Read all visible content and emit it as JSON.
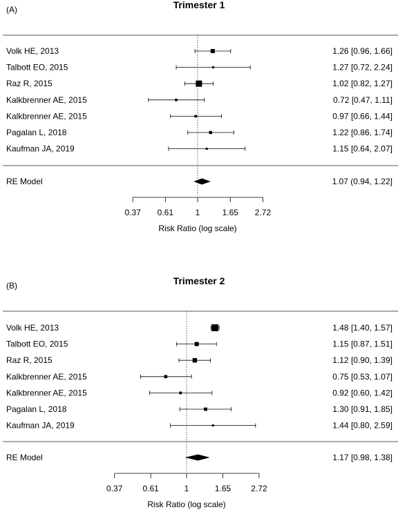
{
  "chart_data": [
    {
      "type": "forest",
      "panel_label": "(A)",
      "title": "Trimester 1",
      "xlabel": "Risk Ratio (log scale)",
      "x_scale": "log",
      "x_ticks": [
        0.37,
        0.61,
        1,
        1.65,
        2.72
      ],
      "x_tick_labels": [
        "0.37",
        "0.61",
        "1",
        "1.65",
        "2.72"
      ],
      "reference_line": 1,
      "studies": [
        {
          "label": "Volk HE, 2013",
          "rr": 1.26,
          "lower": 0.96,
          "upper": 1.66,
          "weight": 3,
          "ci_text": "1.26 [0.96, 1.66]"
        },
        {
          "label": "Talbott EO, 2015",
          "rr": 1.27,
          "lower": 0.72,
          "upper": 2.24,
          "weight": 1.5,
          "ci_text": "1.27 [0.72, 2.24]"
        },
        {
          "label": "Raz R, 2015",
          "rr": 1.02,
          "lower": 0.82,
          "upper": 1.27,
          "weight": 4.5,
          "ci_text": "1.02 [0.82, 1.27]"
        },
        {
          "label": "Kalkbrenner AE, 2015",
          "rr": 0.72,
          "lower": 0.47,
          "upper": 1.11,
          "weight": 1.8,
          "ci_text": "0.72 [0.47, 1.11]"
        },
        {
          "label": "Kalkbrenner AE, 2015",
          "rr": 0.97,
          "lower": 0.66,
          "upper": 1.44,
          "weight": 1.8,
          "ci_text": "0.97 [0.66, 1.44]"
        },
        {
          "label": "Pagalan L, 2018",
          "rr": 1.22,
          "lower": 0.86,
          "upper": 1.74,
          "weight": 2.2,
          "ci_text": "1.22 [0.86, 1.74]"
        },
        {
          "label": "Kaufman JA, 2019",
          "rr": 1.15,
          "lower": 0.64,
          "upper": 2.07,
          "weight": 1.5,
          "ci_text": "1.15 [0.64, 2.07]"
        }
      ],
      "summary": {
        "label": "RE Model",
        "rr": 1.07,
        "lower": 0.94,
        "upper": 1.22,
        "ci_text": "1.07 (0.94, 1.22]"
      }
    },
    {
      "type": "forest",
      "panel_label": "(B)",
      "title": "Trimester 2",
      "xlabel": "Risk Ratio (log scale)",
      "x_scale": "log",
      "x_ticks": [
        0.37,
        0.61,
        1,
        1.65,
        2.72
      ],
      "x_tick_labels": [
        "0.37",
        "0.61",
        "1",
        "1.65",
        "2.72"
      ],
      "reference_line": 1,
      "studies": [
        {
          "label": "Volk HE, 2013",
          "rr": 1.48,
          "lower": 1.4,
          "upper": 1.57,
          "weight": 5,
          "ci_text": "1.48 [1.40, 1.57]"
        },
        {
          "label": "Talbott EO, 2015",
          "rr": 1.15,
          "lower": 0.87,
          "upper": 1.51,
          "weight": 3,
          "ci_text": "1.15 [0.87, 1.51]"
        },
        {
          "label": "Raz R, 2015",
          "rr": 1.12,
          "lower": 0.9,
          "upper": 1.39,
          "weight": 3.2,
          "ci_text": "1.12 [0.90, 1.39]"
        },
        {
          "label": "Kalkbrenner AE, 2015",
          "rr": 0.75,
          "lower": 0.53,
          "upper": 1.07,
          "weight": 2.3,
          "ci_text": "0.75 [0.53, 1.07]"
        },
        {
          "label": "Kalkbrenner AE, 2015",
          "rr": 0.92,
          "lower": 0.6,
          "upper": 1.42,
          "weight": 1.9,
          "ci_text": "0.92 [0.60, 1.42]"
        },
        {
          "label": "Pagalan L, 2018",
          "rr": 1.3,
          "lower": 0.91,
          "upper": 1.85,
          "weight": 2.4,
          "ci_text": "1.30 [0.91, 1.85]"
        },
        {
          "label": "Kaufman JA, 2019",
          "rr": 1.44,
          "lower": 0.8,
          "upper": 2.59,
          "weight": 1.5,
          "ci_text": "1.44 [0.80, 2.59]"
        }
      ],
      "summary": {
        "label": "RE Model",
        "rr": 1.17,
        "lower": 0.98,
        "upper": 1.38,
        "ci_text": "1.17 [0.98, 1.38]"
      }
    }
  ]
}
